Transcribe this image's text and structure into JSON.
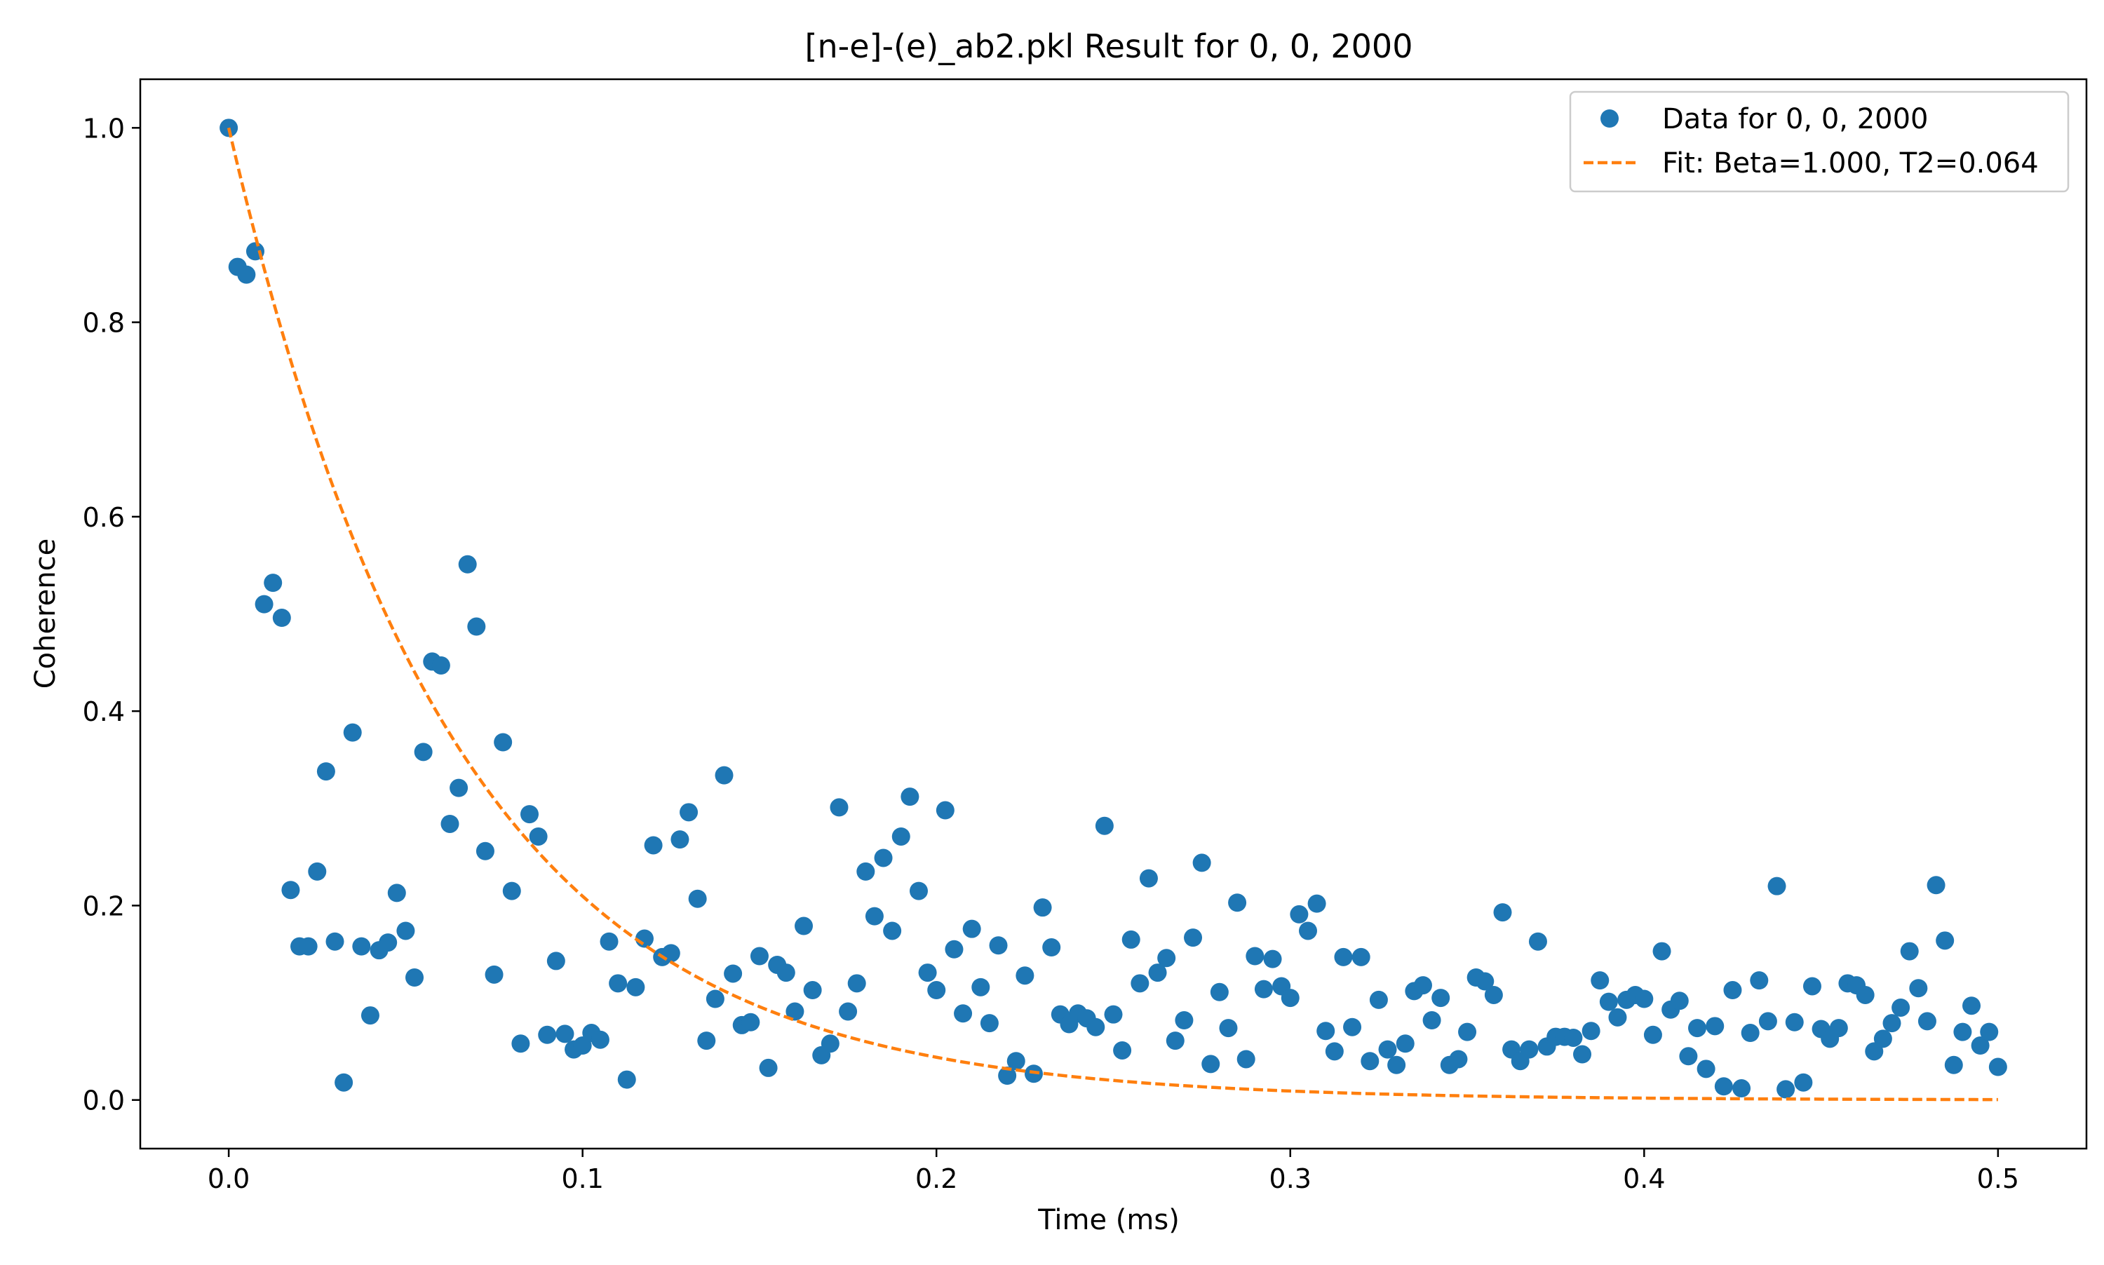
{
  "chart_data": {
    "type": "scatter",
    "title": "[n-e]-(e)_ab2.pkl Result for 0, 0, 2000",
    "xlabel": "Time (ms)",
    "ylabel": "Coherence",
    "xlim": [
      -0.025,
      0.025
    ],
    "ylim": [
      -0.05,
      1.05
    ],
    "xticks": [
      0.0,
      0.1,
      0.2,
      0.3,
      0.4,
      0.5
    ],
    "xtick_labels": [
      "0.0",
      "0.1",
      "0.2",
      "0.3",
      "0.4",
      "0.5"
    ],
    "yticks": [
      0.0,
      0.2,
      0.4,
      0.6,
      0.8,
      1.0
    ],
    "ytick_labels": [
      "0.0",
      "0.2",
      "0.4",
      "0.6",
      "0.8",
      "1.0"
    ],
    "grid": false,
    "legend": {
      "position": "top-right",
      "entries": [
        {
          "label": "Data for 0, 0, 2000",
          "marker": "circle"
        },
        {
          "label": "Fit: Beta=1.000, T2=0.064",
          "marker": "dashed-line"
        }
      ]
    },
    "series": [
      {
        "name": "Data for 0, 0, 2000",
        "kind": "scatter",
        "color": "#1f77b4",
        "x": [
          0.0,
          0.0025,
          0.005,
          0.0075,
          0.01,
          0.0125,
          0.015,
          0.0175,
          0.02,
          0.0225,
          0.025,
          0.0275,
          0.03,
          0.0325,
          0.035,
          0.0375,
          0.04,
          0.0425,
          0.045,
          0.0475,
          0.05,
          0.0525,
          0.055,
          0.0575,
          0.06,
          0.0625,
          0.065,
          0.0675,
          0.07,
          0.0725,
          0.075,
          0.0775,
          0.08,
          0.0825,
          0.085,
          0.0875,
          0.09,
          0.0925,
          0.095,
          0.0975,
          0.1,
          0.1025,
          0.105,
          0.1075,
          0.11,
          0.1125,
          0.115,
          0.1175,
          0.12,
          0.1225,
          0.125,
          0.1275,
          0.13,
          0.1325,
          0.135,
          0.1375,
          0.14,
          0.1425,
          0.145,
          0.1475,
          0.15,
          0.1525,
          0.155,
          0.1575,
          0.16,
          0.1625,
          0.165,
          0.1675,
          0.17,
          0.1725,
          0.175,
          0.1775,
          0.18,
          0.1825,
          0.185,
          0.1875,
          0.19,
          0.1925,
          0.195,
          0.1975,
          0.2,
          0.2025,
          0.205,
          0.2075,
          0.21,
          0.2125,
          0.215,
          0.2175,
          0.22,
          0.2225,
          0.225,
          0.2275,
          0.23,
          0.2325,
          0.235,
          0.2375,
          0.24,
          0.2425,
          0.245,
          0.2475,
          0.25,
          0.2525,
          0.255,
          0.2575,
          0.26,
          0.2625,
          0.265,
          0.2675,
          0.27,
          0.2725,
          0.275,
          0.2775,
          0.28,
          0.2825,
          0.285,
          0.2875,
          0.29,
          0.2925,
          0.295,
          0.2975,
          0.3,
          0.3025,
          0.305,
          0.3075,
          0.31,
          0.3125,
          0.315,
          0.3175,
          0.32,
          0.3225,
          0.325,
          0.3275,
          0.33,
          0.3325,
          0.335,
          0.3375,
          0.34,
          0.3425,
          0.345,
          0.3475,
          0.35,
          0.3525,
          0.355,
          0.3575,
          0.36,
          0.3625,
          0.365,
          0.3675,
          0.37,
          0.3725,
          0.375,
          0.3775,
          0.38,
          0.3825,
          0.385,
          0.3875,
          0.39,
          0.3925,
          0.395,
          0.3975,
          0.4,
          0.4025,
          0.405,
          0.4075,
          0.41,
          0.4125,
          0.415,
          0.4175,
          0.42,
          0.4225,
          0.425,
          0.4275,
          0.43,
          0.4325,
          0.435,
          0.4375,
          0.44,
          0.4425,
          0.445,
          0.4475,
          0.45,
          0.4525,
          0.455,
          0.4575,
          0.46,
          0.4625,
          0.465,
          0.4675,
          0.47,
          0.4725,
          0.475,
          0.4775,
          0.48,
          0.4825,
          0.485,
          0.4875,
          0.49,
          0.4925,
          0.495,
          0.4975,
          0.5
        ],
        "y": [
          1.0,
          0.857,
          0.849,
          0.873,
          0.51,
          0.532,
          0.496,
          0.216,
          0.158,
          0.158,
          0.235,
          0.338,
          0.163,
          0.018,
          0.378,
          0.158,
          0.087,
          0.154,
          0.162,
          0.213,
          0.174,
          0.126,
          0.358,
          0.451,
          0.447,
          0.284,
          0.321,
          0.551,
          0.487,
          0.256,
          0.129,
          0.368,
          0.215,
          0.058,
          0.294,
          0.271,
          0.067,
          0.143,
          0.068,
          0.052,
          0.056,
          0.069,
          0.062,
          0.163,
          0.12,
          0.021,
          0.116,
          0.166,
          0.262,
          0.147,
          0.151,
          0.268,
          0.296,
          0.207,
          0.061,
          0.104,
          0.334,
          0.13,
          0.077,
          0.08,
          0.148,
          0.033,
          0.139,
          0.131,
          0.091,
          0.179,
          0.113,
          0.046,
          0.058,
          0.301,
          0.091,
          0.12,
          0.235,
          0.189,
          0.249,
          0.174,
          0.271,
          0.312,
          0.215,
          0.131,
          0.113,
          0.298,
          0.155,
          0.089,
          0.176,
          0.116,
          0.079,
          0.159,
          0.025,
          0.04,
          0.128,
          0.027,
          0.198,
          0.157,
          0.088,
          0.078,
          0.089,
          0.084,
          0.075,
          0.282,
          0.088,
          0.051,
          0.165,
          0.12,
          0.228,
          0.131,
          0.146,
          0.061,
          0.082,
          0.167,
          0.244,
          0.037,
          0.111,
          0.074,
          0.203,
          0.042,
          0.148,
          0.114,
          0.145,
          0.117,
          0.105,
          0.191,
          0.174,
          0.202,
          0.071,
          0.05,
          0.147,
          0.075,
          0.147,
          0.04,
          0.103,
          0.052,
          0.036,
          0.058,
          0.112,
          0.118,
          0.082,
          0.105,
          0.036,
          0.042,
          0.07,
          0.126,
          0.122,
          0.108,
          0.193,
          0.052,
          0.04,
          0.052,
          0.163,
          0.055,
          0.065,
          0.065,
          0.064,
          0.047,
          0.071,
          0.123,
          0.101,
          0.085,
          0.103,
          0.108,
          0.104,
          0.067,
          0.153,
          0.093,
          0.102,
          0.045,
          0.074,
          0.032,
          0.076,
          0.014,
          0.113,
          0.012,
          0.069,
          0.123,
          0.081,
          0.22,
          0.011,
          0.08,
          0.018,
          0.117,
          0.073,
          0.063,
          0.074,
          0.12,
          0.118,
          0.108,
          0.05,
          0.063,
          0.079,
          0.095,
          0.153,
          0.115,
          0.081,
          0.221,
          0.164,
          0.036,
          0.07,
          0.097,
          0.056,
          0.07,
          0.034
        ]
      },
      {
        "name": "Fit: Beta=1.000, T2=0.064",
        "kind": "line",
        "style": "dashed",
        "color": "#ff7f0e",
        "function": "y = exp(-(x/T2)^Beta)",
        "beta": 1.0,
        "T2": 0.064,
        "x_range": [
          0.0,
          0.5
        ]
      }
    ]
  }
}
